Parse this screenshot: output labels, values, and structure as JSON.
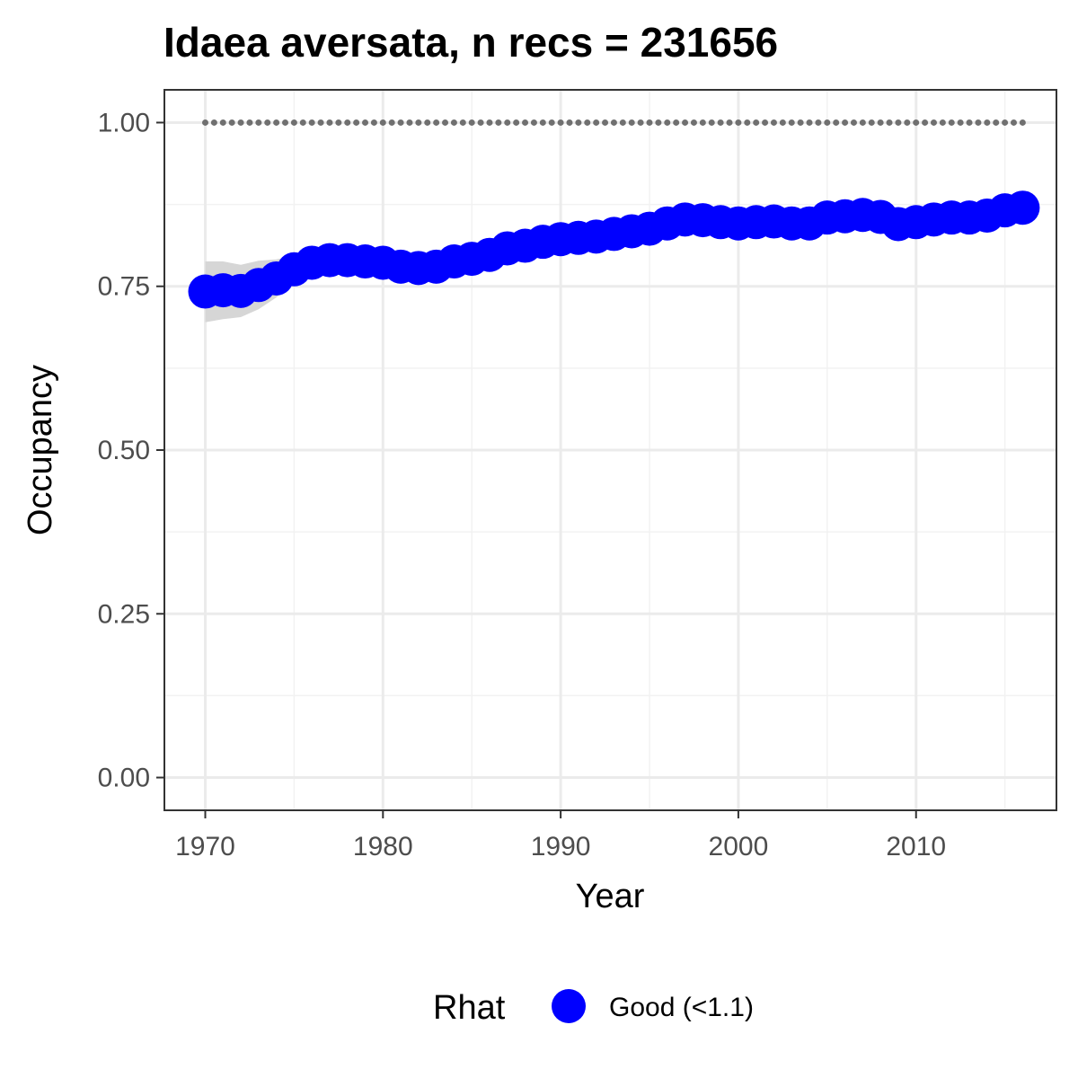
{
  "chart_data": {
    "type": "scatter",
    "title": "Idaea aversata, n recs = 231656",
    "xlabel": "Year",
    "ylabel": "Occupancy",
    "xlim": [
      1967.7,
      2017.9
    ],
    "ylim": [
      -0.05,
      1.05
    ],
    "x_ticks": [
      1970,
      1980,
      1990,
      2000,
      2010
    ],
    "x_tick_labels": [
      "1970",
      "1980",
      "1990",
      "2000",
      "2010"
    ],
    "y_ticks": [
      0,
      0.25,
      0.5,
      0.75,
      1
    ],
    "y_tick_labels": [
      "0.00",
      "0.25",
      "0.50",
      "0.75",
      "1.00"
    ],
    "grid": true,
    "legend_position": "bottom",
    "legend_title": "Rhat",
    "series": [
      {
        "name": "Good (<1.1)",
        "color": "#0000ff",
        "x": [
          1970,
          1971,
          1972,
          1973,
          1974,
          1975,
          1976,
          1977,
          1978,
          1979,
          1980,
          1981,
          1982,
          1983,
          1984,
          1985,
          1986,
          1987,
          1988,
          1989,
          1990,
          1991,
          1992,
          1993,
          1994,
          1995,
          1996,
          1997,
          1998,
          1999,
          2000,
          2001,
          2002,
          2003,
          2004,
          2005,
          2006,
          2007,
          2008,
          2009,
          2010,
          2011,
          2012,
          2013,
          2014,
          2015,
          2016
        ],
        "y": [
          0.742,
          0.744,
          0.743,
          0.752,
          0.762,
          0.776,
          0.786,
          0.79,
          0.79,
          0.788,
          0.786,
          0.78,
          0.778,
          0.78,
          0.788,
          0.792,
          0.798,
          0.808,
          0.812,
          0.818,
          0.822,
          0.824,
          0.826,
          0.83,
          0.834,
          0.838,
          0.846,
          0.852,
          0.851,
          0.848,
          0.846,
          0.848,
          0.849,
          0.846,
          0.846,
          0.855,
          0.857,
          0.859,
          0.856,
          0.845,
          0.848,
          0.852,
          0.855,
          0.855,
          0.858,
          0.866,
          0.87
        ],
        "lower": [
          0.695,
          0.7,
          0.703,
          0.715,
          0.733,
          0.755,
          0.77,
          0.777,
          0.778,
          0.777,
          0.775,
          0.77,
          0.768,
          0.77,
          0.778,
          0.782,
          0.788,
          0.798,
          0.803,
          0.809,
          0.813,
          0.815,
          0.817,
          0.821,
          0.825,
          0.829,
          0.837,
          0.843,
          0.842,
          0.839,
          0.837,
          0.839,
          0.84,
          0.837,
          0.837,
          0.846,
          0.848,
          0.85,
          0.847,
          0.836,
          0.839,
          0.843,
          0.846,
          0.846,
          0.849,
          0.857,
          0.861
        ],
        "upper": [
          0.788,
          0.788,
          0.783,
          0.789,
          0.791,
          0.797,
          0.802,
          0.803,
          0.802,
          0.799,
          0.797,
          0.79,
          0.788,
          0.79,
          0.798,
          0.802,
          0.808,
          0.818,
          0.822,
          0.827,
          0.831,
          0.833,
          0.835,
          0.839,
          0.843,
          0.847,
          0.855,
          0.861,
          0.86,
          0.857,
          0.855,
          0.857,
          0.858,
          0.855,
          0.855,
          0.864,
          0.866,
          0.868,
          0.865,
          0.854,
          0.857,
          0.861,
          0.864,
          0.864,
          0.867,
          0.875,
          0.879
        ]
      }
    ],
    "reference_line": {
      "y": 1.0,
      "x_start": 1970,
      "x_end": 2016,
      "color": "#707070"
    },
    "ribbon_color": "#d6d6d6"
  }
}
